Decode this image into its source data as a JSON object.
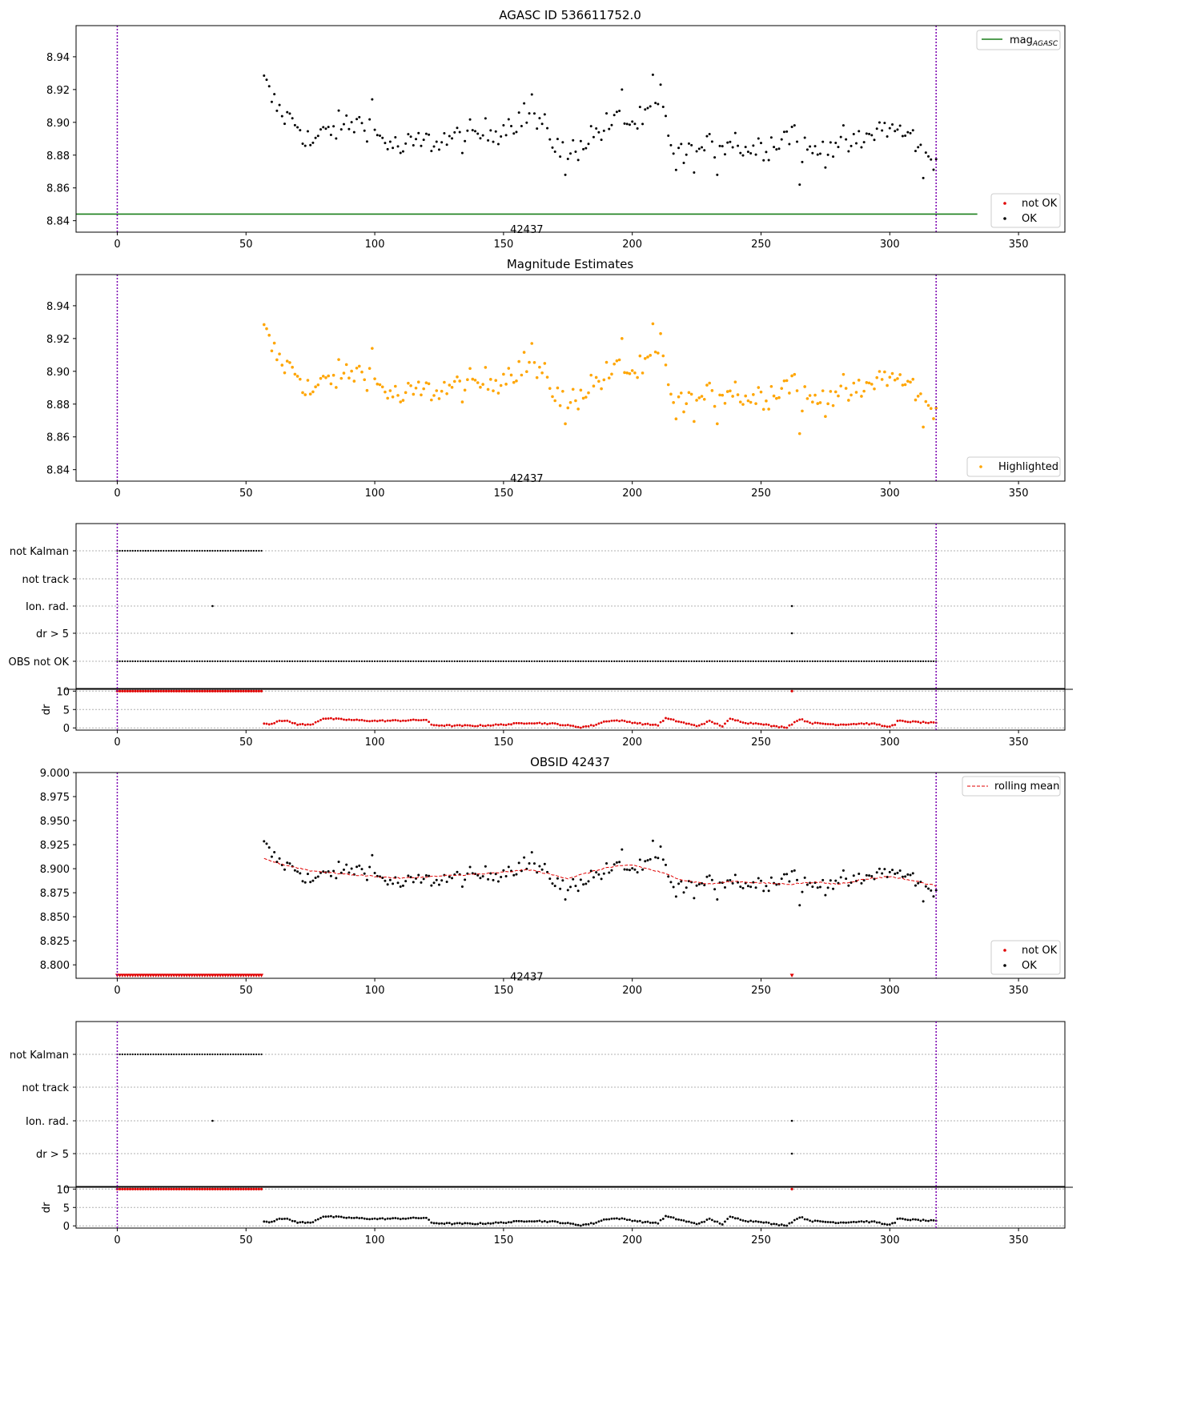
{
  "figure": {
    "panels": [
      {
        "id": "p1",
        "title": "AGASC ID 536611752.0",
        "obsid_label": "42437",
        "legend_line_prefix": "mag",
        "legend_line_sub": "AGASC",
        "legend_notok": "not OK",
        "legend_ok": "OK"
      },
      {
        "id": "p2",
        "title": "Magnitude Estimates",
        "obsid_label": "42437",
        "legend_highlight": "Highlighted"
      },
      {
        "id": "p3",
        "flag_labels": [
          "not Kalman",
          "not track",
          "Ion. rad.",
          "dr > 5",
          "OBS not OK"
        ],
        "dr_label": "dr"
      },
      {
        "id": "p4",
        "title": "OBSID 42437",
        "obsid_label": "42437",
        "legend_rolling": "rolling mean",
        "legend_notok": "not OK",
        "legend_ok": "OK"
      },
      {
        "id": "p5",
        "flag_labels": [
          "not Kalman",
          "not track",
          "Ion. rad.",
          "dr > 5"
        ],
        "dr_label": "dr"
      }
    ]
  },
  "chart_data": [
    {
      "type": "scatter",
      "title": "AGASC ID 536611752.0",
      "xlim": [
        -16,
        368
      ],
      "ylim": [
        8.833,
        8.959
      ],
      "xticks": [
        0,
        50,
        100,
        150,
        200,
        250,
        300,
        350
      ],
      "yticks": [
        8.84,
        8.86,
        8.88,
        8.9,
        8.92,
        8.94
      ],
      "vlines": [
        0,
        318
      ],
      "hline": {
        "name": "mag_AGASC",
        "y": 8.844,
        "x_range": [
          -16,
          334
        ]
      },
      "annotation": {
        "text": "42437",
        "x": 159,
        "y": 8.837
      },
      "legend": [
        "mag_AGASC",
        "not OK",
        "OK"
      ],
      "series": [
        {
          "name": "OK",
          "x_range": [
            57,
            318
          ],
          "step": 1,
          "keypoints": [
            [
              57,
              8.924
            ],
            [
              60,
              8.914
            ],
            [
              64,
              8.905
            ],
            [
              70,
              8.899
            ],
            [
              75,
              8.887
            ],
            [
              82,
              8.895
            ],
            [
              90,
              8.899
            ],
            [
              97,
              8.9
            ],
            [
              100,
              8.893
            ],
            [
              105,
              8.888
            ],
            [
              110,
              8.883
            ],
            [
              115,
              8.887
            ],
            [
              125,
              8.889
            ],
            [
              135,
              8.891
            ],
            [
              145,
              8.894
            ],
            [
              150,
              8.897
            ],
            [
              155,
              8.902
            ],
            [
              160,
              8.905
            ],
            [
              165,
              8.897
            ],
            [
              170,
              8.888
            ],
            [
              175,
              8.88
            ],
            [
              180,
              8.887
            ],
            [
              185,
              8.893
            ],
            [
              190,
              8.897
            ],
            [
              195,
              8.902
            ],
            [
              200,
              8.899
            ],
            [
              205,
              8.901
            ],
            [
              208,
              8.912
            ],
            [
              212,
              8.905
            ],
            [
              215,
              8.887
            ],
            [
              220,
              8.879
            ],
            [
              225,
              8.881
            ],
            [
              230,
              8.885
            ],
            [
              235,
              8.888
            ],
            [
              240,
              8.889
            ],
            [
              245,
              8.883
            ],
            [
              250,
              8.886
            ],
            [
              255,
              8.887
            ],
            [
              260,
              8.893
            ],
            [
              263,
              8.895
            ],
            [
              265,
              8.884
            ],
            [
              270,
              8.882
            ],
            [
              275,
              8.884
            ],
            [
              280,
              8.888
            ],
            [
              285,
              8.886
            ],
            [
              290,
              8.888
            ],
            [
              295,
              8.896
            ],
            [
              300,
              8.897
            ],
            [
              305,
              8.893
            ],
            [
              310,
              8.89
            ],
            [
              315,
              8.878
            ],
            [
              318,
              8.876
            ]
          ],
          "outliers": [
            [
              58,
              8.926
            ],
            [
              174,
              8.868
            ],
            [
              208,
              8.929
            ],
            [
              217,
              8.871
            ],
            [
              233,
              8.868
            ],
            [
              265,
              8.862
            ],
            [
              313,
              8.866
            ],
            [
              196,
              8.92
            ],
            [
              99,
              8.914
            ],
            [
              161,
              8.917
            ],
            [
              211,
              8.923
            ]
          ]
        }
      ]
    },
    {
      "type": "scatter",
      "title": "Magnitude Estimates",
      "xlim": [
        -16,
        368
      ],
      "ylim": [
        8.833,
        8.959
      ],
      "xticks": [
        0,
        50,
        100,
        150,
        200,
        250,
        300,
        350
      ],
      "yticks": [
        8.84,
        8.86,
        8.88,
        8.9,
        8.92,
        8.94
      ],
      "vlines": [
        0,
        318
      ],
      "annotation": {
        "text": "42437",
        "x": 159,
        "y": 8.837
      },
      "legend": [
        "Highlighted"
      ],
      "series": [
        {
          "name": "Highlighted",
          "color": "#ffa500",
          "same_as_series": "OK"
        }
      ]
    },
    {
      "type": "scatter",
      "xlim": [
        -16,
        368
      ],
      "categories": [
        "not Kalman",
        "not track",
        "Ion. rad.",
        "dr > 5",
        "OBS not OK"
      ],
      "flags": {
        "not Kalman": {
          "x_range": [
            0,
            56
          ],
          "step": 1
        },
        "not track": {
          "points": []
        },
        "Ion. rad.": {
          "points": [
            37,
            262
          ]
        },
        "dr > 5": {
          "points": [
            262
          ]
        },
        "OBS not OK": {
          "x_range": [
            0,
            318
          ],
          "step": 1
        }
      },
      "dr": {
        "ylim": [
          -0.6,
          10.5
        ],
        "yticks": [
          0,
          5,
          10
        ],
        "capped_value": 10,
        "capped_ranges": [
          [
            0,
            56
          ],
          [
            262,
            262
          ]
        ],
        "keypoints": [
          [
            57,
            1.2
          ],
          [
            60,
            1.1
          ],
          [
            63,
            2.1
          ],
          [
            66,
            1.8
          ],
          [
            70,
            1.0
          ],
          [
            75,
            0.8
          ],
          [
            80,
            2.6
          ],
          [
            90,
            2.2
          ],
          [
            100,
            1.9
          ],
          [
            110,
            2.0
          ],
          [
            120,
            2.2
          ],
          [
            122,
            0.8
          ],
          [
            130,
            0.6
          ],
          [
            140,
            0.6
          ],
          [
            150,
            0.9
          ],
          [
            160,
            1.4
          ],
          [
            170,
            1.1
          ],
          [
            180,
            0.2
          ],
          [
            185,
            0.7
          ],
          [
            190,
            1.9
          ],
          [
            195,
            2.0
          ],
          [
            205,
            1.0
          ],
          [
            210,
            0.8
          ],
          [
            213,
            2.6
          ],
          [
            220,
            1.4
          ],
          [
            225,
            0.5
          ],
          [
            230,
            1.8
          ],
          [
            235,
            0.5
          ],
          [
            238,
            2.4
          ],
          [
            245,
            1.3
          ],
          [
            250,
            1.2
          ],
          [
            255,
            0.4
          ],
          [
            260,
            0.2
          ],
          [
            265,
            2.4
          ],
          [
            270,
            1.3
          ],
          [
            280,
            0.9
          ],
          [
            290,
            1.2
          ],
          [
            295,
            1.0
          ],
          [
            298,
            0.4
          ],
          [
            302,
            0.7
          ],
          [
            303,
            1.9
          ],
          [
            310,
            1.6
          ],
          [
            318,
            1.3
          ]
        ]
      }
    },
    {
      "type": "scatter",
      "title": "OBSID 42437",
      "xlim": [
        -16,
        368
      ],
      "ylim": [
        8.786,
        9.0
      ],
      "xticks": [
        0,
        50,
        100,
        150,
        200,
        250,
        300,
        350
      ],
      "yticks": [
        8.8,
        8.825,
        8.85,
        8.875,
        8.9,
        8.925,
        8.95,
        8.975,
        9.0
      ],
      "vlines": [
        0,
        318
      ],
      "annotation": {
        "text": "42437",
        "x": 159,
        "y": 8.7915
      },
      "legend": [
        "rolling mean",
        "not OK",
        "OK"
      ],
      "series": [
        {
          "name": "OK",
          "same_as_series": "OK"
        },
        {
          "name": "not OK",
          "y": 8.789,
          "x_ranges": [
            [
              0,
              56
            ],
            [
              262,
              262
            ]
          ],
          "marker": "triangle"
        },
        {
          "name": "rolling mean",
          "keypoints": [
            [
              57,
              8.91
            ],
            [
              65,
              8.904
            ],
            [
              75,
              8.898
            ],
            [
              90,
              8.894
            ],
            [
              110,
              8.89
            ],
            [
              130,
              8.893
            ],
            [
              145,
              8.895
            ],
            [
              160,
              8.899
            ],
            [
              175,
              8.89
            ],
            [
              190,
              8.901
            ],
            [
              200,
              8.904
            ],
            [
              210,
              8.897
            ],
            [
              220,
              8.888
            ],
            [
              230,
              8.884
            ],
            [
              240,
              8.887
            ],
            [
              250,
              8.885
            ],
            [
              262,
              8.884
            ],
            [
              270,
              8.886
            ],
            [
              280,
              8.884
            ],
            [
              290,
              8.889
            ],
            [
              300,
              8.892
            ],
            [
              310,
              8.887
            ],
            [
              318,
              8.882
            ]
          ]
        }
      ]
    },
    {
      "type": "scatter",
      "xlim": [
        -16,
        368
      ],
      "categories": [
        "not Kalman",
        "not track",
        "Ion. rad.",
        "dr > 5"
      ],
      "flags": {
        "not Kalman": {
          "x_range": [
            0,
            56
          ],
          "step": 1
        },
        "not track": {
          "points": []
        },
        "Ion. rad.": {
          "points": [
            37,
            262
          ]
        },
        "dr > 5": {
          "points": [
            262
          ]
        }
      },
      "dr": {
        "ylim": [
          -0.6,
          10.5
        ],
        "yticks": [
          0,
          5,
          10
        ],
        "capped_value": 10,
        "capped_ranges": [
          [
            0,
            56
          ],
          [
            262,
            262
          ]
        ],
        "point_color": "#000000",
        "same_as": "panel 3 dr"
      }
    }
  ]
}
